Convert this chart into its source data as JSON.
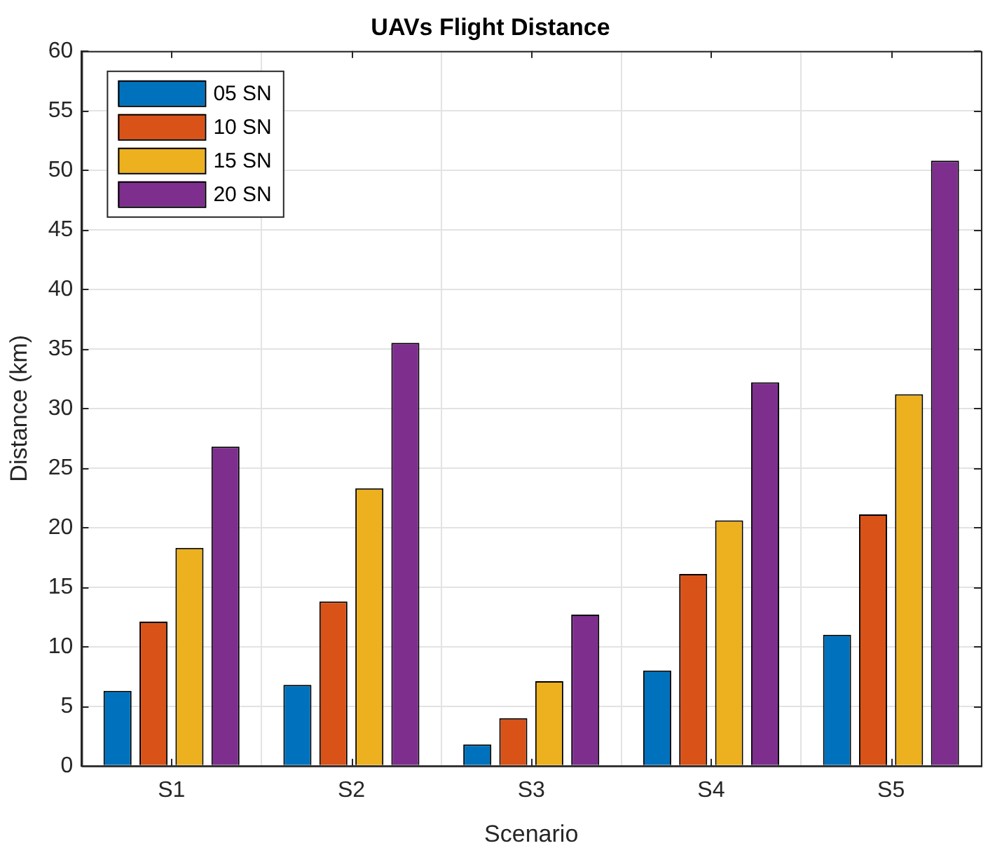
{
  "chart_data": {
    "type": "bar",
    "title": "UAVs Flight Distance",
    "xlabel": "Scenario",
    "ylabel": "Distance (km)",
    "categories": [
      "S1",
      "S2",
      "S3",
      "S4",
      "S5"
    ],
    "series": [
      {
        "name": "05 SN",
        "color": "#0072bd",
        "values": [
          6.3,
          6.8,
          1.8,
          8.0,
          11.0
        ]
      },
      {
        "name": "10 SN",
        "color": "#d95319",
        "values": [
          12.1,
          13.8,
          4.0,
          16.1,
          21.1
        ]
      },
      {
        "name": "15 SN",
        "color": "#edb120",
        "values": [
          18.3,
          23.3,
          7.1,
          20.6,
          31.2
        ]
      },
      {
        "name": "20 SN",
        "color": "#7e2f8e",
        "values": [
          26.8,
          35.5,
          12.7,
          32.2,
          50.8
        ]
      }
    ],
    "ylim": [
      0,
      60
    ],
    "yticks": [
      0,
      5,
      10,
      15,
      20,
      25,
      30,
      35,
      40,
      45,
      50,
      55,
      60
    ],
    "grid": true,
    "legend": "top left"
  }
}
